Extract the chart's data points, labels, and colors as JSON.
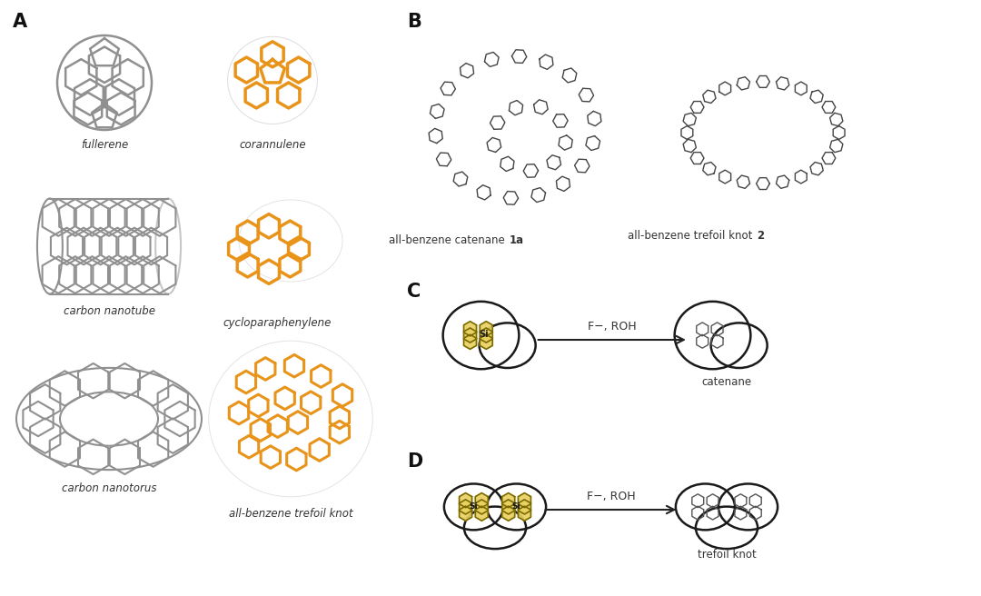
{
  "bg_color": "#ffffff",
  "label_color": "#222222",
  "orange_color": "#E8941A",
  "gray_color": "#909090",
  "light_gray": "#bbbbbb",
  "yellow_color": "#E8D060",
  "yellow_fill": "#D4C040",
  "section_A": "A",
  "section_B": "B",
  "section_C": "C",
  "section_D": "D",
  "label_fullerene": "fullerene",
  "label_corannulene": "corannulene",
  "label_nanotube": "carbon nanotube",
  "label_cyclopara": "cycloparaphenylene",
  "label_nanotorus": "carbon nanotorus",
  "label_trefoil_knot": "all-benzene trefoil knot",
  "label_catenane_1a_main": "all-benzene catenane ",
  "label_catenane_1a_bold": "1a",
  "label_trefoil_2_main": "all-benzene trefoil knot ",
  "label_trefoil_2_bold": "2",
  "label_catenane": "catenane",
  "label_trefoil": "trefoil knot",
  "arrow_label": "F−, ROH",
  "figsize": [
    10.8,
    6.56
  ],
  "dpi": 100
}
